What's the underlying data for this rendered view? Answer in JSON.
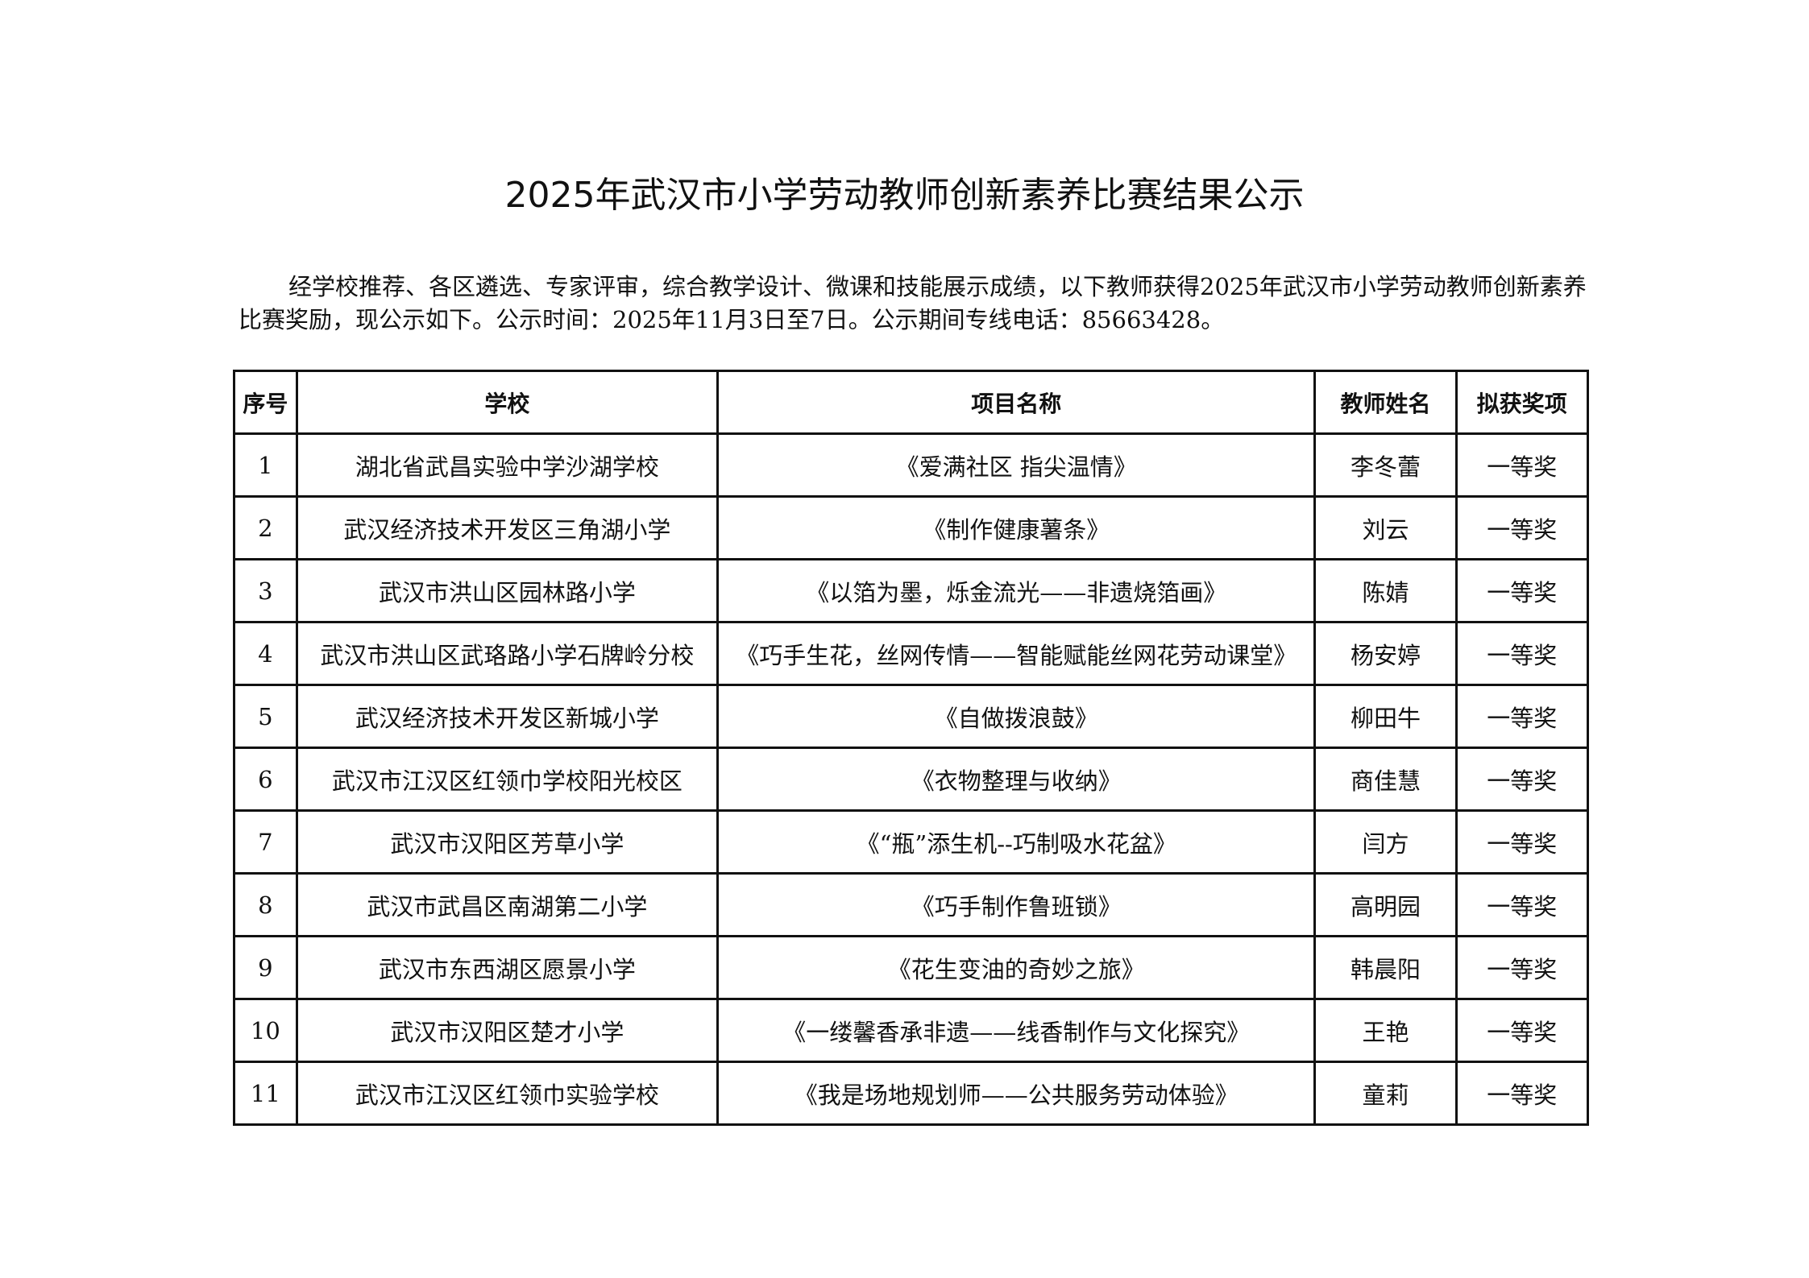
{
  "title": "2025年武汉市小学劳动教师创新素养比赛结果公示",
  "intro": "经学校推荐、各区遴选、专家评审，综合教学设计、微课和技能展示成绩，以下教师获得2025年武汉市小学劳动教师创新素养比赛奖励，现公示如下。公示时间：2025年11月3日至7日。公示期间专线电话：85663428。",
  "table": {
    "headers": [
      "序号",
      "学校",
      "项目名称",
      "教师姓名",
      "拟获奖项"
    ],
    "rows": [
      [
        "1",
        "湖北省武昌实验中学沙湖学校",
        "《爱满社区  指尖温情》",
        "李冬蕾",
        "一等奖"
      ],
      [
        "2",
        "武汉经济技术开发区三角湖小学",
        "《制作健康薯条》",
        "刘云",
        "一等奖"
      ],
      [
        "3",
        "武汉市洪山区园林路小学",
        "《以箔为墨，烁金流光——非遗烧箔画》",
        "陈婧",
        "一等奖"
      ],
      [
        "4",
        "武汉市洪山区武珞路小学石牌岭分校",
        "《巧手生花，丝网传情——智能赋能丝网花劳动课堂》",
        "杨安婷",
        "一等奖"
      ],
      [
        "5",
        "武汉经济技术开发区新城小学",
        "《自做拨浪鼓》",
        "柳田牛",
        "一等奖"
      ],
      [
        "6",
        "武汉市江汉区红领巾学校阳光校区",
        "《衣物整理与收纳》",
        "商佳慧",
        "一等奖"
      ],
      [
        "7",
        "武汉市汉阳区芳草小学",
        "《“瓶”添生机--巧制吸水花盆》",
        "闫方",
        "一等奖"
      ],
      [
        "8",
        "武汉市武昌区南湖第二小学",
        "《巧手制作鲁班锁》",
        "高明园",
        "一等奖"
      ],
      [
        "9",
        "武汉市东西湖区愿景小学",
        "《花生变油的奇妙之旅》",
        "韩晨阳",
        "一等奖"
      ],
      [
        "10",
        "武汉市汉阳区楚才小学",
        "《一缕馨香承非遗——线香制作与文化探究》",
        "王艳",
        "一等奖"
      ],
      [
        "11",
        "武汉市江汉区红领巾实验学校",
        "《我是场地规划师——公共服务劳动体验》",
        "童莉",
        "一等奖"
      ]
    ]
  }
}
